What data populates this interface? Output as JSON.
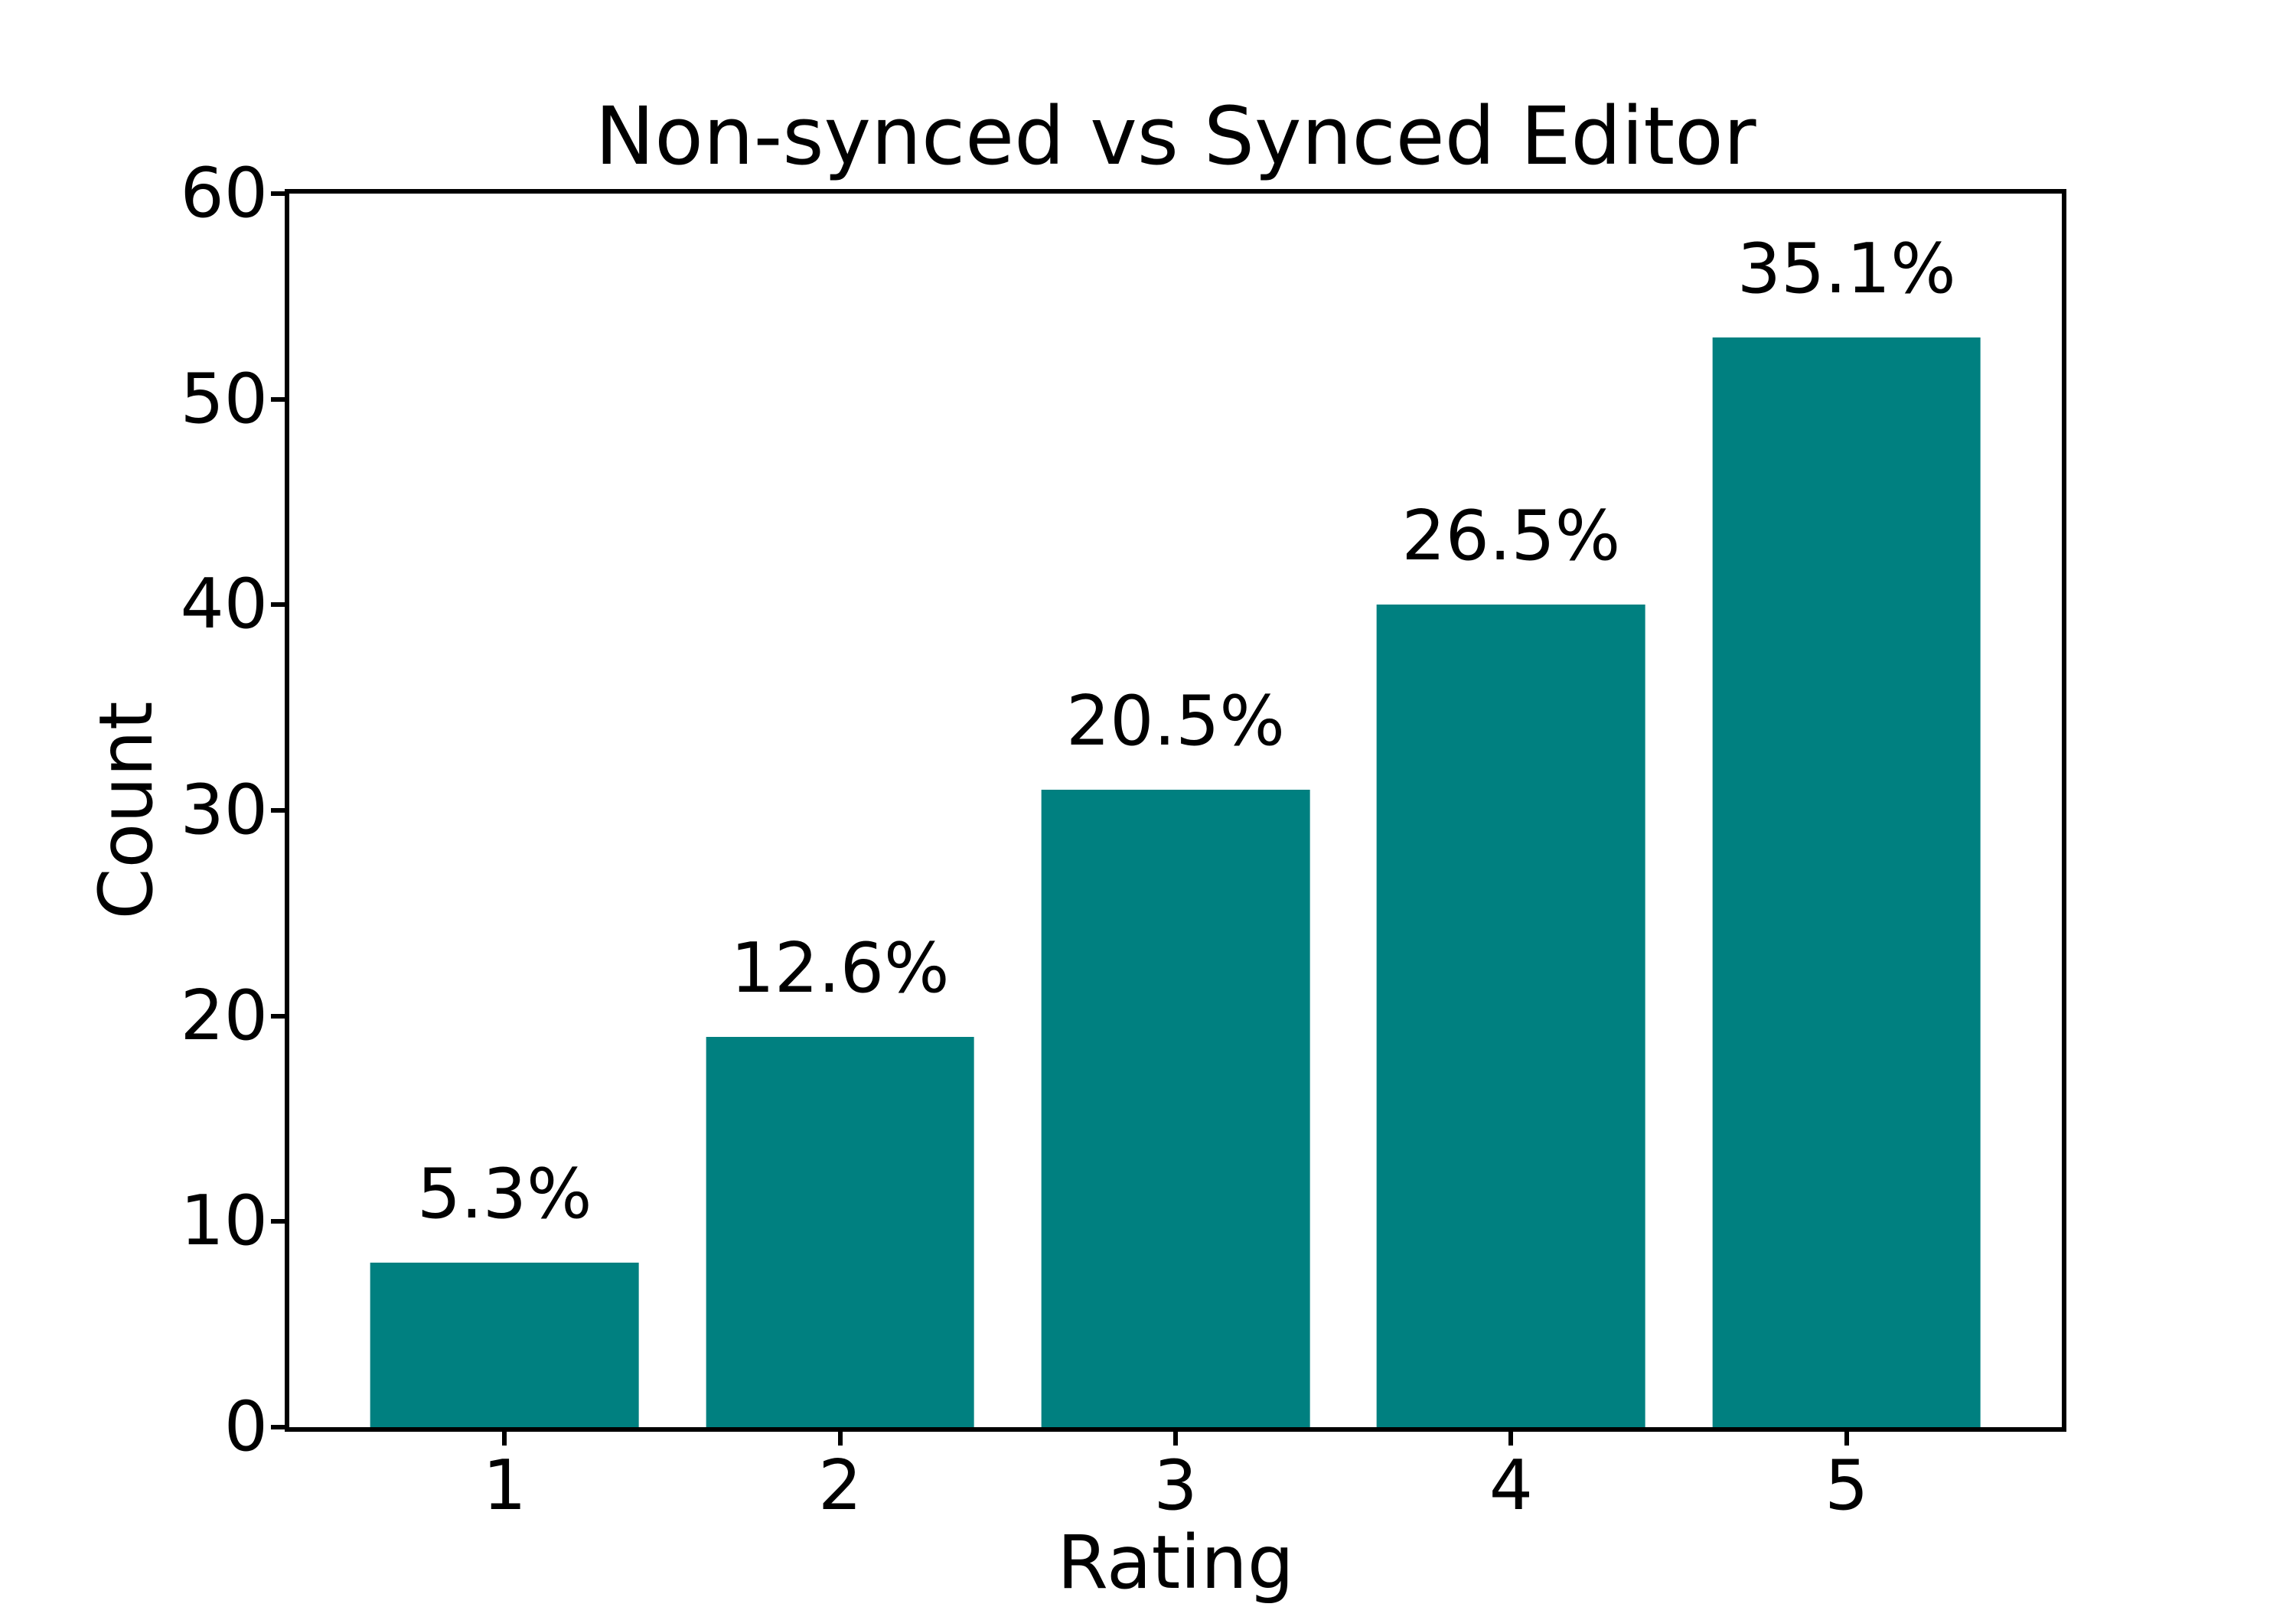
{
  "chart_data": {
    "type": "bar",
    "title": "Non-synced vs Synced Editor",
    "xlabel": "Rating",
    "ylabel": "Count",
    "categories": [
      "1",
      "2",
      "3",
      "4",
      "5"
    ],
    "values": [
      8,
      19,
      31,
      40,
      53
    ],
    "bar_labels": [
      "5.3%",
      "12.6%",
      "20.5%",
      "26.5%",
      "35.1%"
    ],
    "yticks": [
      0,
      10,
      20,
      30,
      40,
      50,
      60
    ],
    "ylim": [
      0,
      60
    ],
    "bar_color": "#008080",
    "grid": false,
    "legend_position": "none"
  }
}
